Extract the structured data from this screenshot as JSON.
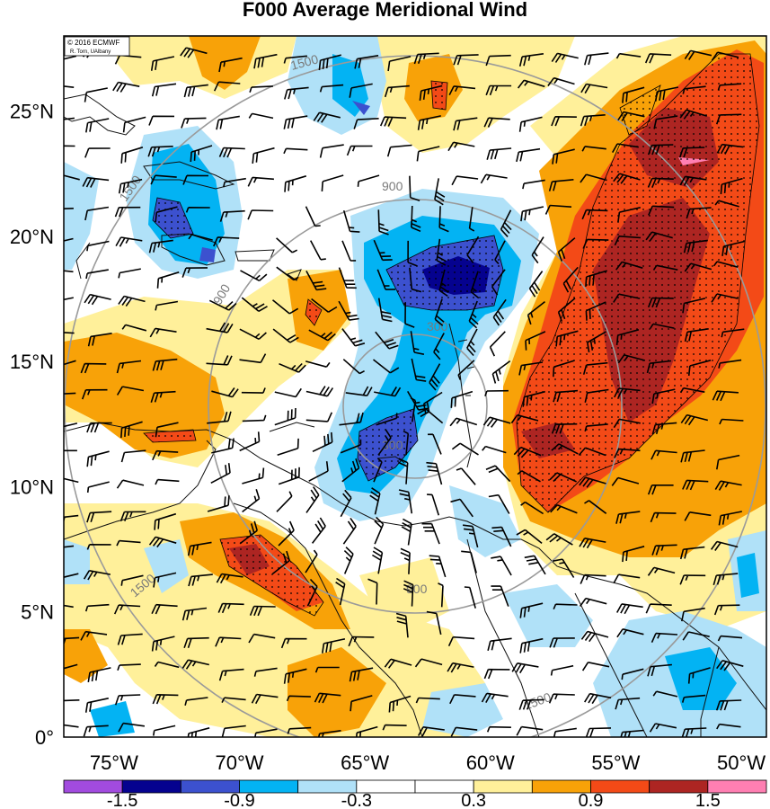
{
  "title": "F000 Average Meridional Wind",
  "credit": [
    "© 2016 ECMWF",
    "R. Torn, UAlbany"
  ],
  "map": {
    "lon_range": [
      -77,
      -49
    ],
    "lat_range": [
      0,
      28
    ],
    "lat_ticks": [
      {
        "value": 25,
        "label": "25°N"
      },
      {
        "value": 20,
        "label": "20°N"
      },
      {
        "value": 15,
        "label": "15°N"
      },
      {
        "value": 10,
        "label": "10°N"
      },
      {
        "value": 5,
        "label": "5°N"
      },
      {
        "value": 0,
        "label": "0°"
      }
    ],
    "lon_ticks": [
      {
        "value": -75,
        "label": "75°W"
      },
      {
        "value": -70,
        "label": "70°W"
      },
      {
        "value": -65,
        "label": "65°W"
      },
      {
        "value": -60,
        "label": "60°W"
      },
      {
        "value": -55,
        "label": "55°W"
      },
      {
        "value": -50,
        "label": "50°W"
      }
    ],
    "range_ring_labels": [
      "300",
      "900",
      "1500"
    ]
  },
  "colorbar": {
    "colors": [
      "#a24bdf",
      "#05028f",
      "#3c51cf",
      "#03b3f3",
      "#b0e1f8",
      "#ffffff",
      "#ffffff",
      "#fff09a",
      "#f8a208",
      "#f34a17",
      "#ad2522",
      "#ff7fb2"
    ],
    "labels": [
      "-1.5",
      "-0.9",
      "-0.3",
      "0.3",
      "0.9",
      "1.5"
    ]
  }
}
